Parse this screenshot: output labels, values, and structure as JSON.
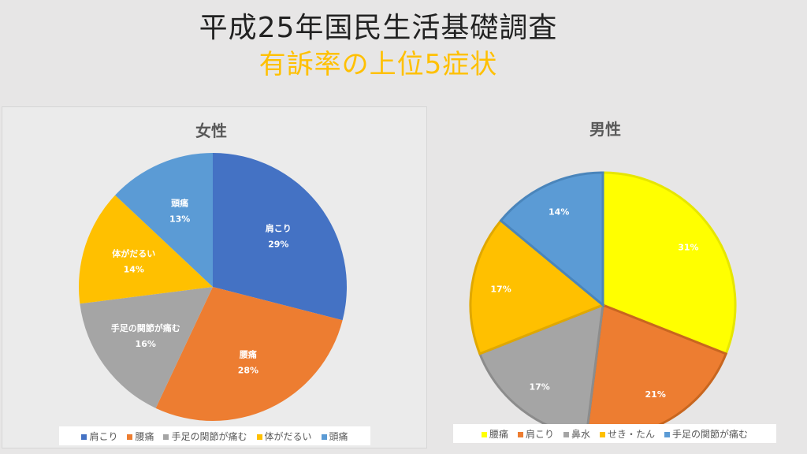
{
  "title": "平成25年国民生活基礎調査",
  "subtitle": "有訴率の上位5症状",
  "chart_data": [
    {
      "type": "pie",
      "title": "女性",
      "start": "top-clockwise",
      "legend": "bottom",
      "categories": [
        "肩こり",
        "腰痛",
        "手足の関節が痛む",
        "体がだるい",
        "頭痛"
      ],
      "values": [
        29,
        28,
        16,
        14,
        13
      ],
      "labels": [
        "29%",
        "28%",
        "16%",
        "14%",
        "13%"
      ],
      "colors": [
        "#4472c4",
        "#ed7d31",
        "#a5a5a5",
        "#ffc000",
        "#5b9bd5"
      ]
    },
    {
      "type": "pie",
      "title": "男性",
      "start": "top-clockwise",
      "legend": "bottom",
      "categories": [
        "腰痛",
        "肩こり",
        "鼻水",
        "せき・たん",
        "手足の関節が痛む"
      ],
      "values": [
        31,
        21,
        17,
        17,
        14
      ],
      "labels": [
        "31%",
        "21%",
        "17%",
        "17%",
        "14%"
      ],
      "colors": [
        "#ffff00",
        "#ed7d31",
        "#a5a5a5",
        "#ffc000",
        "#5b9bd5"
      ]
    }
  ]
}
